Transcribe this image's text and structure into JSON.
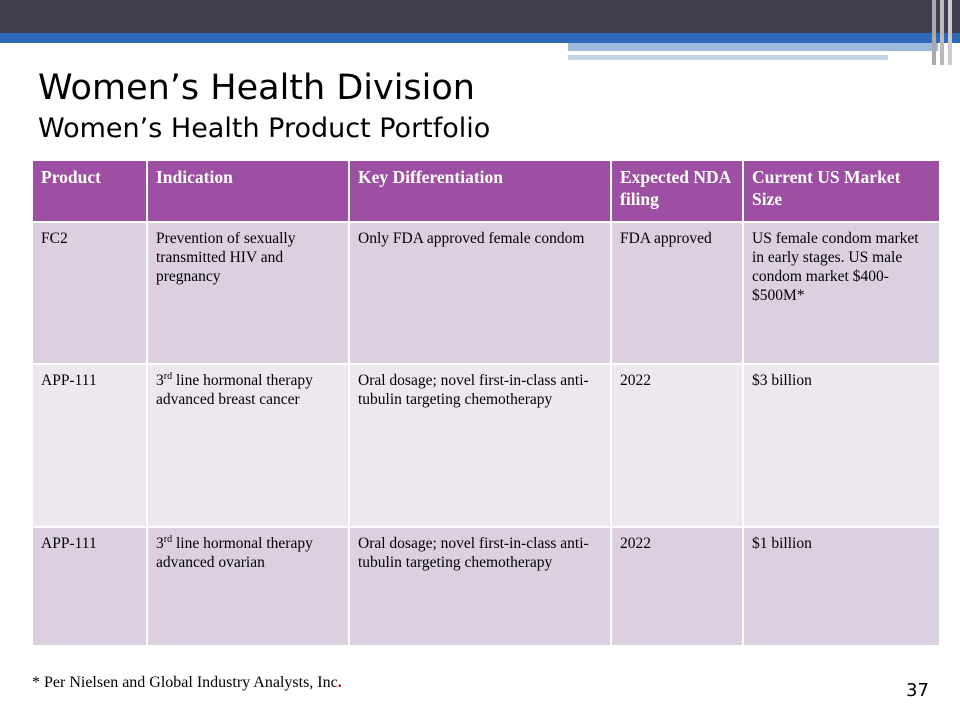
{
  "header": {
    "title": "Women’s Health Division",
    "subtitle": "Women’s Health Product Portfolio"
  },
  "table": {
    "columns": [
      "Product",
      "Indication",
      "Key Differentiation",
      "Expected NDA filing",
      "Current US Market Size"
    ],
    "rows": [
      [
        "FC2",
        "Prevention of sexually transmitted HIV and pregnancy",
        "Only FDA approved female condom",
        "FDA approved",
        "US female condom market in early stages. US male condom market $400- $500M*"
      ],
      [
        "APP-111",
        {
          "number": "3",
          "sup": "rd",
          "rest": " line hormonal therapy advanced breast cancer"
        },
        "Oral dosage; novel first-in-class anti-tubulin targeting chemotherapy",
        "2022",
        "$3 billion"
      ],
      [
        "APP-111",
        {
          "number": "3",
          "sup": "rd",
          "rest": " line hormonal therapy advanced ovarian"
        },
        "Oral dosage; novel first-in-class anti-tubulin targeting chemotherapy",
        "2022",
        "$1 billion"
      ]
    ]
  },
  "footnote": {
    "text": "* Per Nielsen and Global Industry Analysts, Inc",
    "mark": "."
  },
  "page_number": "37"
}
